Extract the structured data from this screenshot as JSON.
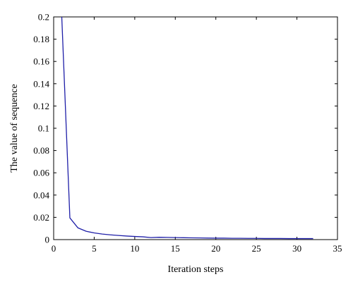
{
  "chart_data": {
    "type": "line",
    "title": "",
    "xlabel": "Iteration steps",
    "ylabel": "The value of sequence",
    "xlim": [
      0,
      35
    ],
    "ylim": [
      0,
      0.2
    ],
    "xticks": [
      0,
      5,
      10,
      15,
      20,
      25,
      30,
      35
    ],
    "yticks": [
      0,
      0.02,
      0.04,
      0.06,
      0.08,
      0.1,
      0.12,
      0.14,
      0.16,
      0.18,
      0.2
    ],
    "xtick_labels": [
      "0",
      "5",
      "10",
      "15",
      "20",
      "25",
      "30",
      "35"
    ],
    "ytick_labels": [
      "0",
      "0.02",
      "0.04",
      "0.06",
      "0.08",
      "0.1",
      "0.12",
      "0.14",
      "0.16",
      "0.18",
      "0.2"
    ],
    "grid": false,
    "series": [
      {
        "color": "#1f1fa8",
        "x": [
          1,
          2,
          3,
          4,
          5,
          6,
          7,
          8,
          9,
          10,
          11,
          12,
          13,
          14,
          15,
          16,
          17,
          18,
          19,
          20,
          21,
          22,
          23,
          24,
          25,
          26,
          27,
          28,
          29,
          30,
          31,
          32
        ],
        "y": [
          0.2,
          0.0195,
          0.0105,
          0.0075,
          0.006,
          0.005,
          0.0043,
          0.0037,
          0.0032,
          0.0028,
          0.0025,
          0.0018,
          0.0021,
          0.002,
          0.0018,
          0.0017,
          0.0016,
          0.0015,
          0.0014,
          0.0013,
          0.0013,
          0.0012,
          0.0012,
          0.0011,
          0.0011,
          0.001,
          0.001,
          0.001,
          0.0009,
          0.0009,
          0.0009,
          0.0009
        ]
      }
    ]
  }
}
